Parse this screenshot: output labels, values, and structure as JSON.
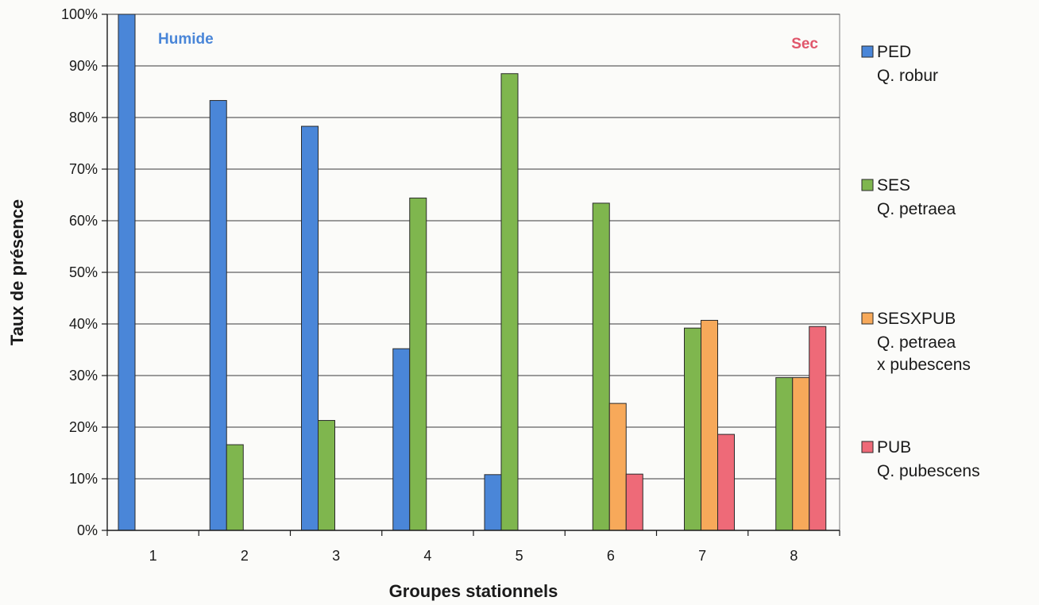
{
  "chart_data": {
    "type": "bar",
    "xlabel": "Groupes stationnels",
    "ylabel": "Taux de présence",
    "ylim": [
      0,
      100
    ],
    "y_tick_values": [
      0,
      10,
      20,
      30,
      40,
      50,
      60,
      70,
      80,
      90,
      100
    ],
    "y_tick_labels": [
      "0%",
      "10%",
      "20%",
      "30%",
      "40%",
      "50%",
      "60%",
      "70%",
      "80%",
      "90%",
      "100%"
    ],
    "grid": true,
    "legend_position": "right",
    "categories": [
      "1",
      "2",
      "3",
      "4",
      "5",
      "6",
      "7",
      "8"
    ],
    "series": [
      {
        "name": "PED",
        "subtitle": [
          "Q. robur"
        ],
        "color": "#4a86d8",
        "values": [
          100,
          83.3,
          78.3,
          35.2,
          10.8,
          0,
          0,
          0
        ]
      },
      {
        "name": "SES",
        "subtitle": [
          "Q. petraea"
        ],
        "color": "#7fb64e",
        "values": [
          0,
          16.6,
          21.3,
          64.4,
          88.5,
          63.4,
          39.2,
          29.6
        ]
      },
      {
        "name": "SESXPUB",
        "subtitle": [
          "Q. petraea",
          "x pubescens"
        ],
        "color": "#f7a95a",
        "values": [
          0,
          0,
          0,
          0,
          0,
          24.6,
          40.7,
          29.6
        ]
      },
      {
        "name": "PUB",
        "subtitle": [
          "Q. pubescens"
        ],
        "color": "#ee6a78",
        "values": [
          0,
          0,
          0,
          0,
          0,
          10.9,
          18.6,
          39.5
        ]
      }
    ],
    "annotations": [
      {
        "text": "Humide",
        "color": "#4a86d8",
        "anchor": "top-left"
      },
      {
        "text": "Sec",
        "color": "#e0566b",
        "anchor": "top-right"
      }
    ]
  }
}
